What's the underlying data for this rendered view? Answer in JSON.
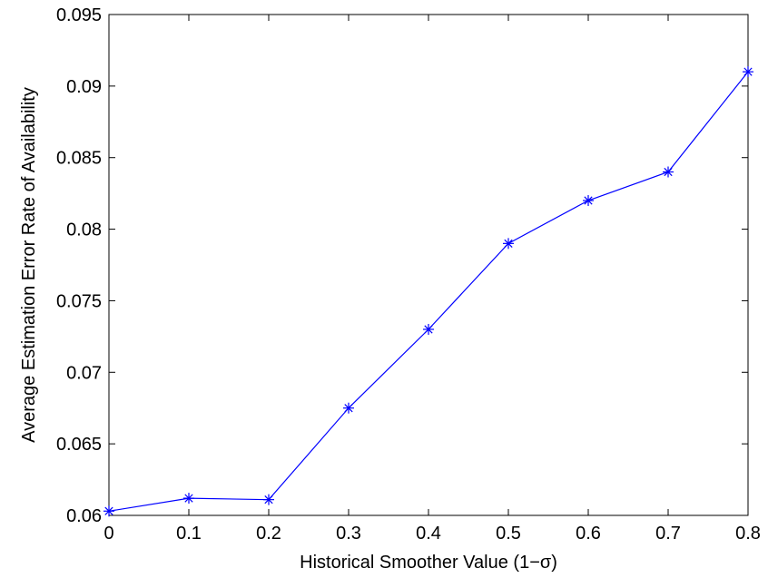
{
  "chart_data": {
    "type": "line",
    "title": "",
    "xlabel": "Historical Smoother Value (1−σ)",
    "ylabel": "Average Estimation Error Rate of Availability",
    "xlim": [
      0,
      0.8
    ],
    "ylim": [
      0.06,
      0.095
    ],
    "xticks": [
      0,
      0.1,
      0.2,
      0.3,
      0.4,
      0.5,
      0.6,
      0.7,
      0.8
    ],
    "xtick_labels": [
      "0",
      "0.1",
      "0.2",
      "0.3",
      "0.4",
      "0.5",
      "0.6",
      "0.7",
      "0.8"
    ],
    "yticks": [
      0.06,
      0.065,
      0.07,
      0.075,
      0.08,
      0.085,
      0.09,
      0.095
    ],
    "ytick_labels": [
      "0.06",
      "0.065",
      "0.07",
      "0.075",
      "0.08",
      "0.085",
      "0.09",
      "0.095"
    ],
    "grid": false,
    "series": [
      {
        "color": "#0000ff",
        "marker": "asterisk",
        "x": [
          0,
          0.1,
          0.2,
          0.3,
          0.4,
          0.5,
          0.6,
          0.7,
          0.8
        ],
        "y": [
          0.0603,
          0.0612,
          0.0611,
          0.0675,
          0.073,
          0.079,
          0.082,
          0.084,
          0.091
        ]
      }
    ]
  }
}
